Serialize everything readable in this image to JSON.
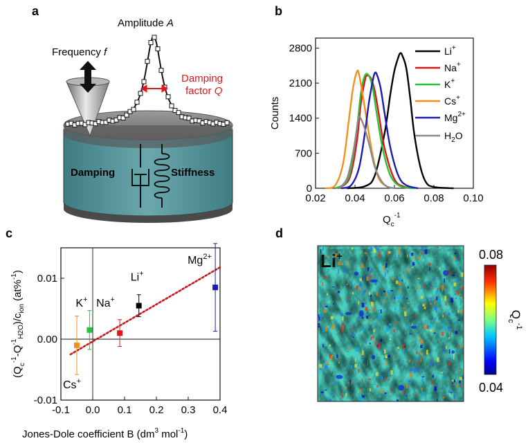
{
  "panels": {
    "a": {
      "label": "a",
      "amplitude_label": "Amplitude",
      "amplitude_symbol": "A",
      "frequency_label": "Frequency",
      "frequency_symbol": "f",
      "damping_factor_line1": "Damping",
      "damping_factor_line2": "factor",
      "damping_factor_symbol": "Q",
      "damping_label": "Damping",
      "stiffness_label": "Stiffness",
      "colors": {
        "cylinder": "#5b9aa0",
        "annotation": "#e0161a"
      }
    },
    "b": {
      "label": "b"
    },
    "c": {
      "label": "c"
    },
    "d": {
      "label": "d",
      "ion_label": "Li",
      "ion_charge": "+",
      "colorbar_max": "0.08",
      "colorbar_min": "0.04",
      "colorbar_title": "Q",
      "colorbar_sub": "c",
      "colorbar_sup": "-1"
    }
  },
  "chart_data": [
    {
      "type": "line",
      "title": "",
      "xlabel": "Q",
      "xlabel_sub": "c",
      "xlabel_sup": "-1",
      "ylabel": "Counts",
      "xlim": [
        0.02,
        0.1
      ],
      "ylim": [
        0,
        3000
      ],
      "xticks": [
        "0.02",
        "0.04",
        "0.06",
        "0.08",
        "0.10"
      ],
      "yticks": [
        "0",
        "700",
        "1400",
        "2100",
        "2800"
      ],
      "series": [
        {
          "name": "Li",
          "sup": "+",
          "color": "#000000",
          "x": [
            0.036,
            0.045,
            0.05,
            0.055,
            0.058,
            0.06,
            0.062,
            0.063,
            0.064,
            0.066,
            0.068,
            0.07,
            0.073,
            0.076,
            0.08,
            0.09
          ],
          "y": [
            0,
            40,
            250,
            1100,
            1900,
            2350,
            2620,
            2700,
            2650,
            2400,
            1800,
            1100,
            450,
            120,
            25,
            0
          ]
        },
        {
          "name": "Na",
          "sup": "+",
          "color": "#e0161a",
          "x": [
            0.03,
            0.035,
            0.038,
            0.041,
            0.043,
            0.045,
            0.046,
            0.048,
            0.05,
            0.052,
            0.055,
            0.06,
            0.065,
            0.07
          ],
          "y": [
            0,
            80,
            300,
            950,
            1700,
            2150,
            2250,
            2200,
            1950,
            1500,
            800,
            180,
            30,
            0
          ]
        },
        {
          "name": "K",
          "sup": "+",
          "color": "#27c13a",
          "x": [
            0.03,
            0.035,
            0.038,
            0.041,
            0.043,
            0.045,
            0.047,
            0.049,
            0.051,
            0.054,
            0.058,
            0.063,
            0.07
          ],
          "y": [
            0,
            100,
            400,
            1200,
            1900,
            2250,
            2250,
            2000,
            1500,
            800,
            250,
            40,
            0
          ]
        },
        {
          "name": "Cs",
          "sup": "+",
          "color": "#f39019",
          "x": [
            0.025,
            0.03,
            0.034,
            0.037,
            0.039,
            0.041,
            0.042,
            0.044,
            0.046,
            0.049,
            0.052,
            0.056,
            0.06
          ],
          "y": [
            0,
            60,
            500,
            1400,
            2000,
            2330,
            2280,
            1850,
            1350,
            650,
            200,
            40,
            0
          ]
        },
        {
          "name": "Mg",
          "sup": "2+",
          "color": "#1a1ab5",
          "x": [
            0.033,
            0.038,
            0.042,
            0.045,
            0.047,
            0.049,
            0.05,
            0.051,
            0.053,
            0.055,
            0.058,
            0.062,
            0.066,
            0.072
          ],
          "y": [
            0,
            60,
            400,
            1100,
            1700,
            2150,
            2300,
            2280,
            2000,
            1500,
            800,
            250,
            60,
            0
          ]
        },
        {
          "name": "H",
          "sub": "2",
          "name_end": "O",
          "color": "#888888",
          "x": [
            0.032,
            0.036,
            0.039,
            0.041,
            0.042,
            0.044,
            0.046,
            0.048,
            0.05,
            0.053,
            0.056,
            0.06
          ],
          "y": [
            0,
            200,
            700,
            1200,
            1430,
            1300,
            1050,
            750,
            430,
            170,
            40,
            0
          ]
        }
      ]
    },
    {
      "type": "scatter",
      "title": "",
      "xlabel": "Jones-Dole coefficient B (dm",
      "xlabel_sup1": "3",
      "xlabel_mid": " mol",
      "xlabel_sup2": "-1",
      "xlabel_end": ")",
      "ylabel": "(Q",
      "xlim": [
        -0.1,
        0.4
      ],
      "ylim": [
        -0.01,
        0.015
      ],
      "xticks": [
        "-0.1",
        "0.0",
        "0.1",
        "0.2",
        "0.3",
        "0.4"
      ],
      "yticks": [
        "-0.01",
        "0.00",
        "0.01"
      ],
      "points": [
        {
          "name": "Cs",
          "sup": "+",
          "x": -0.05,
          "y": -0.001,
          "err": 0.0048,
          "color": "#f39019"
        },
        {
          "name": "K",
          "sup": "+",
          "x": -0.01,
          "y": 0.0015,
          "err": 0.0032,
          "color": "#27c13a"
        },
        {
          "name": "Na",
          "sup": "+",
          "x": 0.085,
          "y": 0.001,
          "err": 0.0022,
          "color": "#e0161a"
        },
        {
          "name": "Li",
          "sup": "+",
          "x": 0.145,
          "y": 0.0055,
          "err": 0.0018,
          "color": "#000000"
        },
        {
          "name": "Mg",
          "sup": "2+",
          "x": 0.385,
          "y": 0.0085,
          "err": 0.0072,
          "color": "#1a1ab5"
        }
      ],
      "fit": {
        "x": [
          -0.07,
          0.4
        ],
        "y": [
          -0.0025,
          0.0118
        ],
        "color": "#c8161e"
      }
    }
  ]
}
